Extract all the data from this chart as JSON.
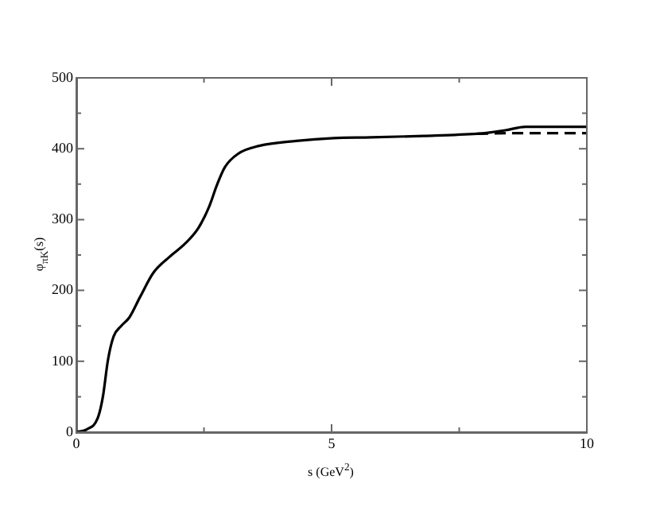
{
  "chart_data": {
    "type": "line",
    "xlabel": "s (GeV$^{2}$)",
    "ylabel": "φ$_{πK}$(s)",
    "xlim": [
      0,
      10
    ],
    "ylim": [
      0,
      500
    ],
    "xticks": [
      0,
      {
        "value": 2.5,
        "label": null
      },
      5,
      {
        "value": 7.5,
        "label": null
      },
      10
    ],
    "yticks": [
      0,
      {
        "value": 50,
        "label": null
      },
      100,
      {
        "value": 150,
        "label": null
      },
      200,
      {
        "value": 250,
        "label": null
      },
      300,
      {
        "value": 350,
        "label": null
      },
      400,
      {
        "value": 450,
        "label": null
      },
      500
    ],
    "grid": false,
    "legend": false,
    "series": [
      {
        "color": "#000000",
        "line_style": "solid",
        "x": [
          0,
          0.21,
          0.42,
          0.52,
          0.62,
          0.73,
          0.88,
          1.04,
          1.25,
          1.51,
          1.82,
          2.13,
          2.39,
          2.6,
          2.75,
          2.91,
          3.17,
          3.58,
          4.31,
          5.04,
          5.77,
          6.8,
          7.85,
          8.0,
          8.4,
          8.8,
          9.2,
          10
        ],
        "values": [
          0,
          4,
          20,
          50,
          102,
          135,
          150,
          162,
          191,
          225,
          247,
          266,
          288,
          318,
          348,
          374,
          393,
          404,
          411,
          415,
          416,
          418,
          421,
          422,
          426,
          431,
          431,
          431
        ]
      },
      {
        "color": "#000000",
        "line_style": "dashed",
        "x": [
          7.85,
          8.5,
          9.2,
          10
        ],
        "values": [
          421,
          422,
          422,
          422
        ]
      }
    ]
  }
}
